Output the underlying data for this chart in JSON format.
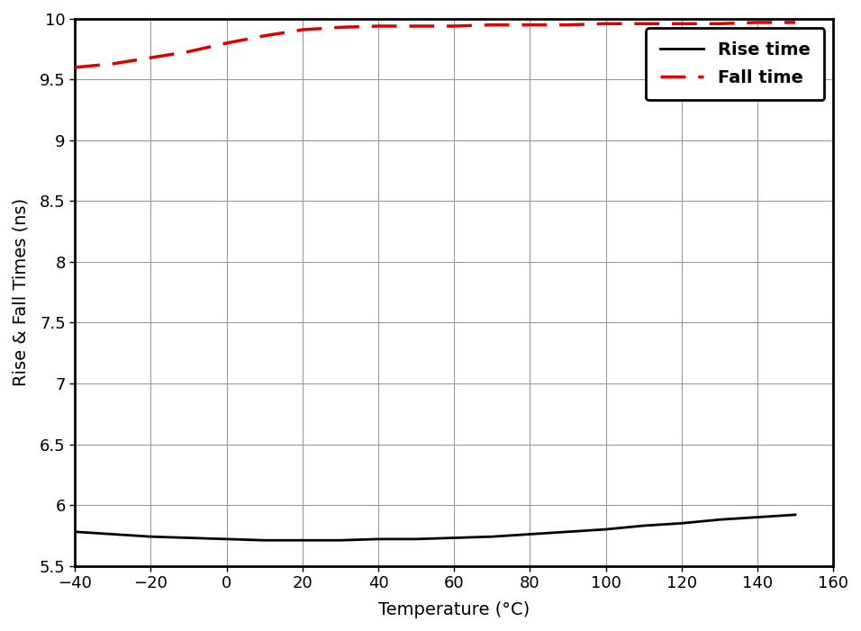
{
  "xlabel": "Temperature (°C)",
  "ylabel": "Rise & Fall Times (ns)",
  "xlim": [
    -40,
    160
  ],
  "ylim": [
    5.5,
    10
  ],
  "xticks": [
    -40,
    -20,
    0,
    20,
    40,
    60,
    80,
    100,
    120,
    140,
    160
  ],
  "yticks": [
    5.5,
    6.0,
    6.5,
    7.0,
    7.5,
    8.0,
    8.5,
    9.0,
    9.5,
    10.0
  ],
  "rise_time_x": [
    -40,
    -30,
    -20,
    -10,
    0,
    10,
    20,
    30,
    40,
    50,
    60,
    70,
    80,
    90,
    100,
    110,
    120,
    130,
    140,
    150
  ],
  "rise_time_y": [
    5.78,
    5.76,
    5.74,
    5.73,
    5.72,
    5.71,
    5.71,
    5.71,
    5.72,
    5.72,
    5.73,
    5.74,
    5.76,
    5.78,
    5.8,
    5.83,
    5.85,
    5.88,
    5.9,
    5.92
  ],
  "fall_time_x": [
    -40,
    -30,
    -20,
    -10,
    0,
    10,
    20,
    30,
    40,
    50,
    60,
    70,
    80,
    90,
    100,
    110,
    120,
    130,
    140,
    150
  ],
  "fall_time_y": [
    9.6,
    9.63,
    9.68,
    9.73,
    9.8,
    9.86,
    9.91,
    9.93,
    9.94,
    9.94,
    9.94,
    9.95,
    9.95,
    9.95,
    9.96,
    9.96,
    9.96,
    9.96,
    9.97,
    9.97
  ],
  "rise_color": "#000000",
  "fall_color": "#dd0000",
  "rise_label": "Rise time",
  "fall_label": "Fall time",
  "rise_linewidth": 2.0,
  "fall_linewidth": 2.5,
  "fall_linestyle": "--",
  "rise_linestyle": "-",
  "background_color": "#ffffff",
  "grid_color": "#999999",
  "axis_label_fontsize": 14,
  "tick_fontsize": 13,
  "legend_fontsize": 14
}
